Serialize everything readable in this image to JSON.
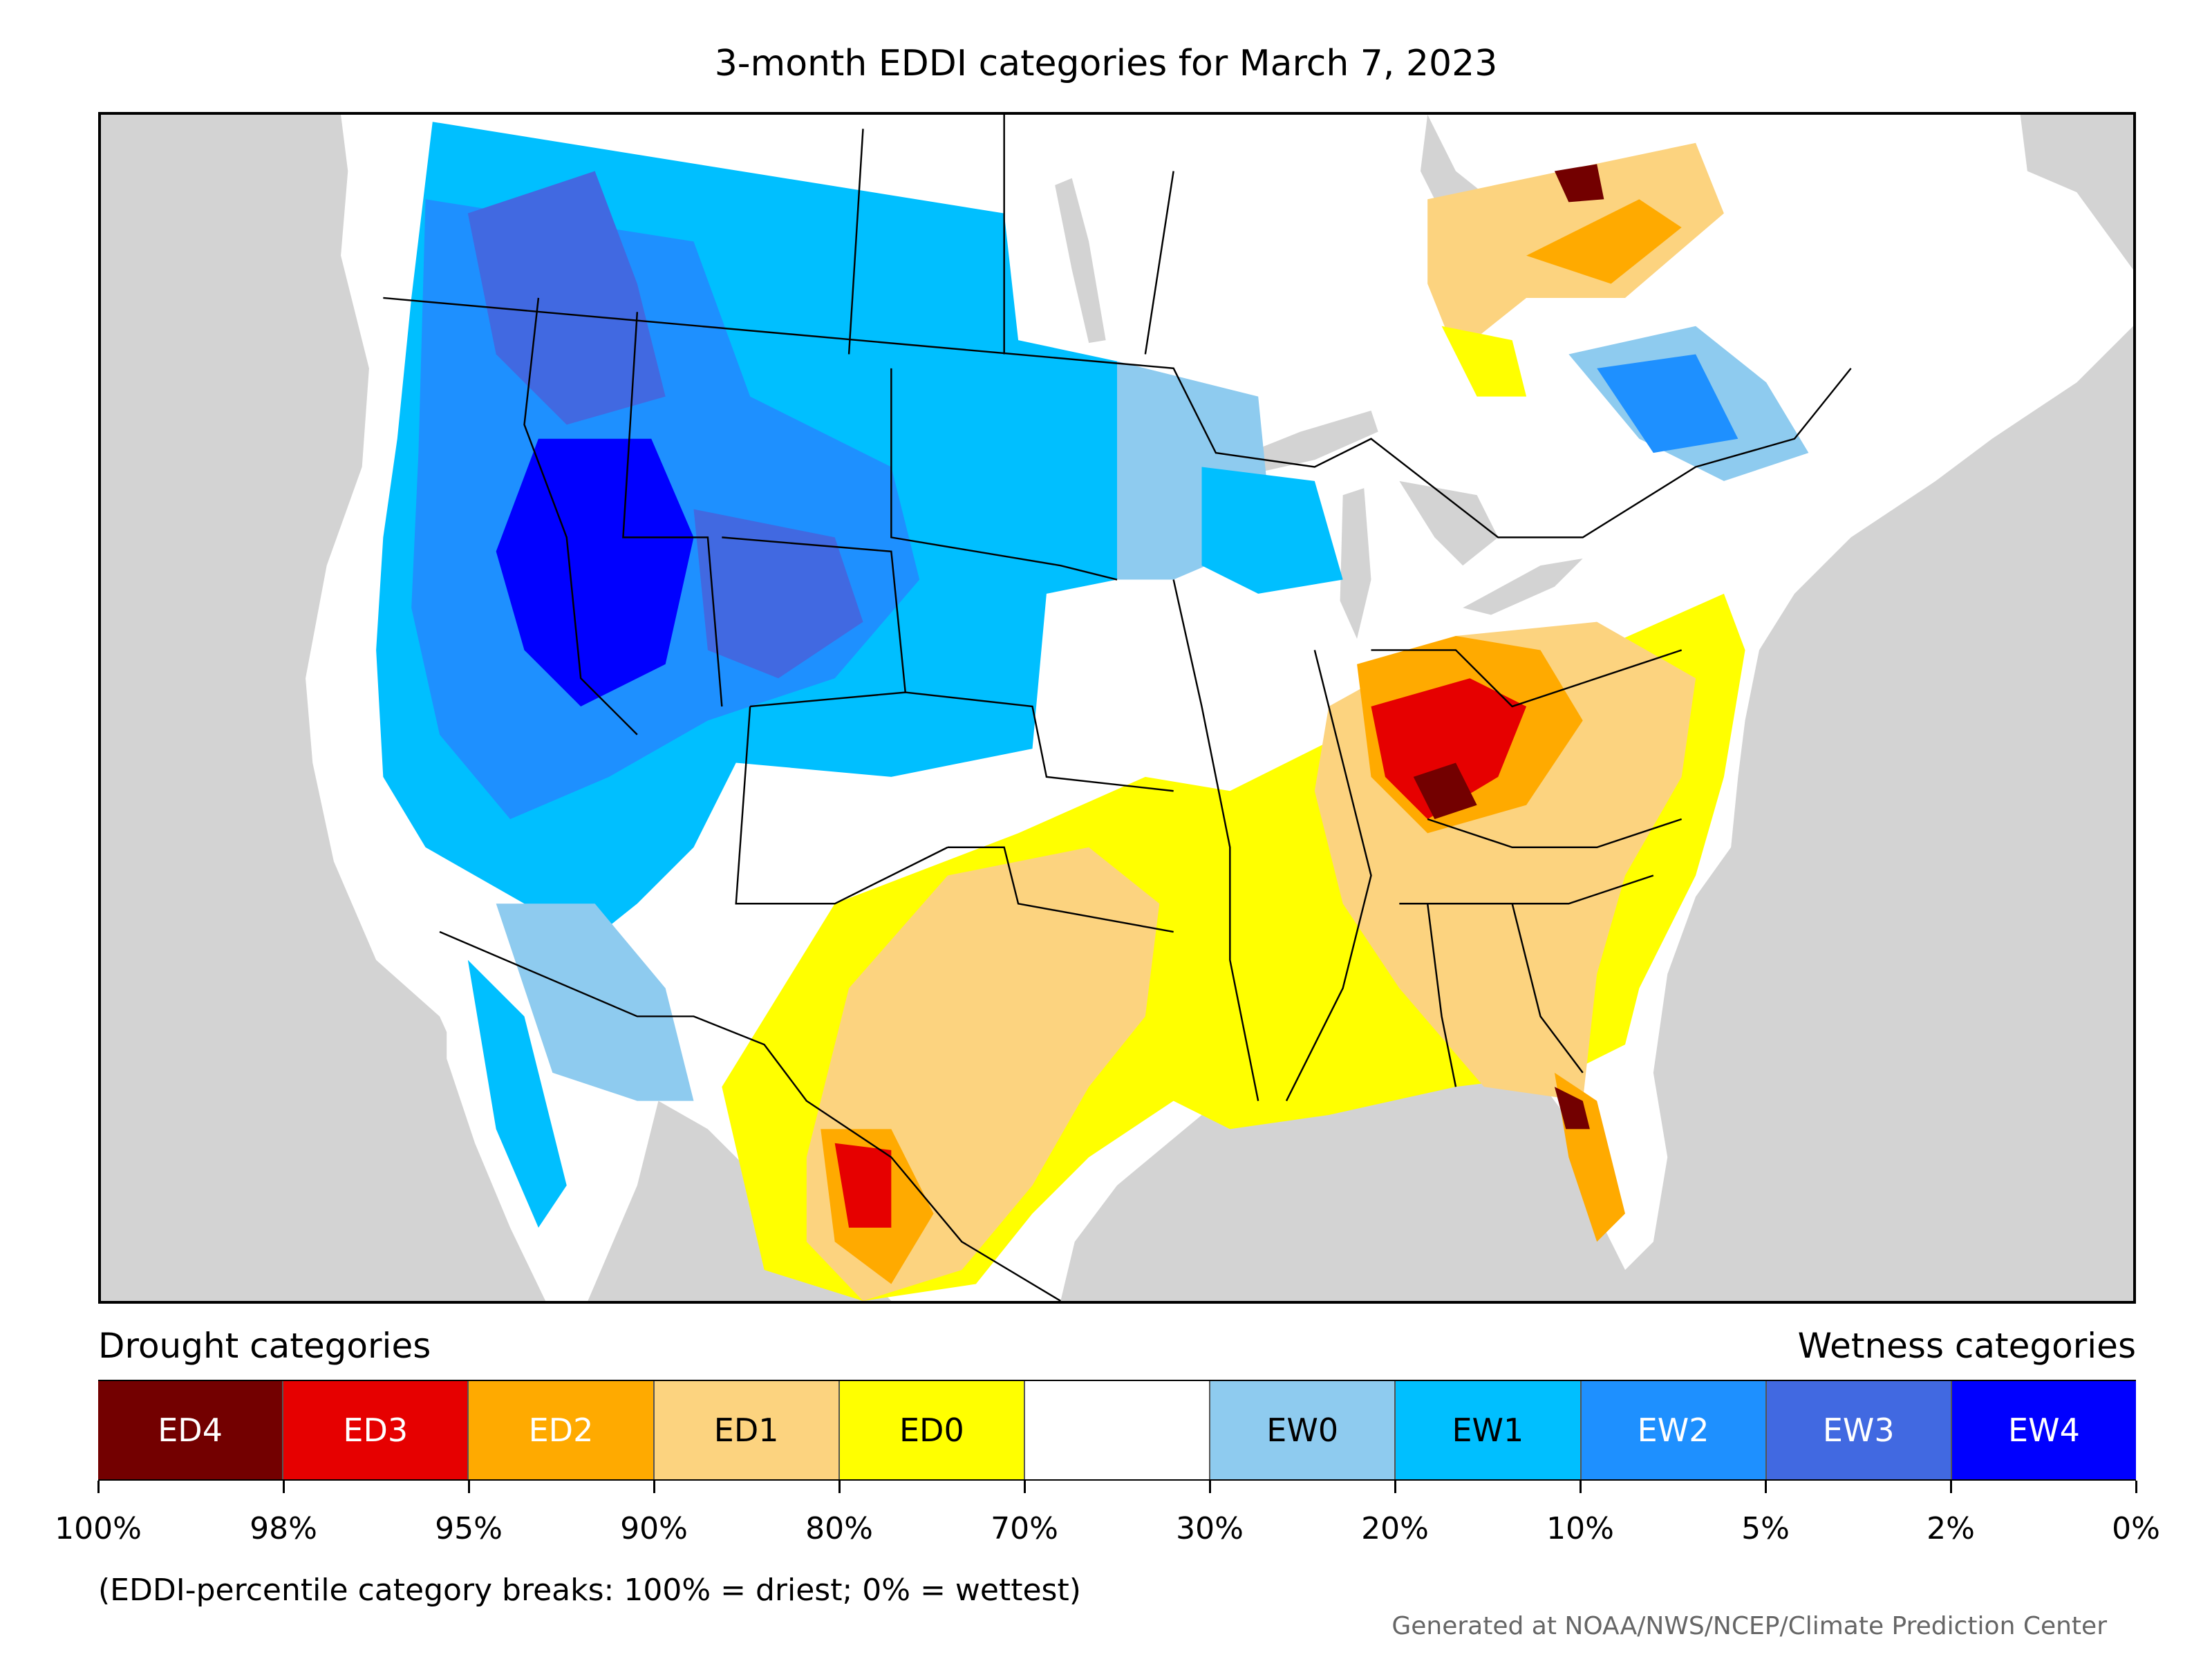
{
  "title": "3-month EDDI categories for March 7, 2023",
  "legend": {
    "drought_heading": "Drought categories",
    "wetness_heading": "Wetness categories",
    "categories": [
      {
        "label": "ED4",
        "color": "#730000",
        "text_color": "#ffffff"
      },
      {
        "label": "ED3",
        "color": "#e60000",
        "text_color": "#ffffff"
      },
      {
        "label": "ED2",
        "color": "#ffaa00",
        "text_color": "#ffffff"
      },
      {
        "label": "ED1",
        "color": "#fcd37f",
        "text_color": "#000000"
      },
      {
        "label": "ED0",
        "color": "#ffff00",
        "text_color": "#000000"
      },
      {
        "label": "",
        "color": "#ffffff",
        "text_color": "#000000"
      },
      {
        "label": "EW0",
        "color": "#8ecbef",
        "text_color": "#000000"
      },
      {
        "label": "EW1",
        "color": "#00bfff",
        "text_color": "#000000"
      },
      {
        "label": "EW2",
        "color": "#1e90ff",
        "text_color": "#ffffff"
      },
      {
        "label": "EW3",
        "color": "#4169e1",
        "text_color": "#ffffff"
      },
      {
        "label": "EW4",
        "color": "#0000ff",
        "text_color": "#ffffff"
      }
    ],
    "tick_labels": [
      "100%",
      "98%",
      "95%",
      "90%",
      "80%",
      "70%",
      "30%",
      "20%",
      "10%",
      "5%",
      "2%",
      "0%"
    ]
  },
  "note": "(EDDI-percentile category breaks: 100% = driest; 0% = wettest)",
  "credit": "Generated at NOAA/NWS/NCEP/Climate Prediction Center",
  "map": {
    "background_color": "#d3d3d3",
    "land_color": "#ffffff",
    "border_color": "#000000"
  }
}
